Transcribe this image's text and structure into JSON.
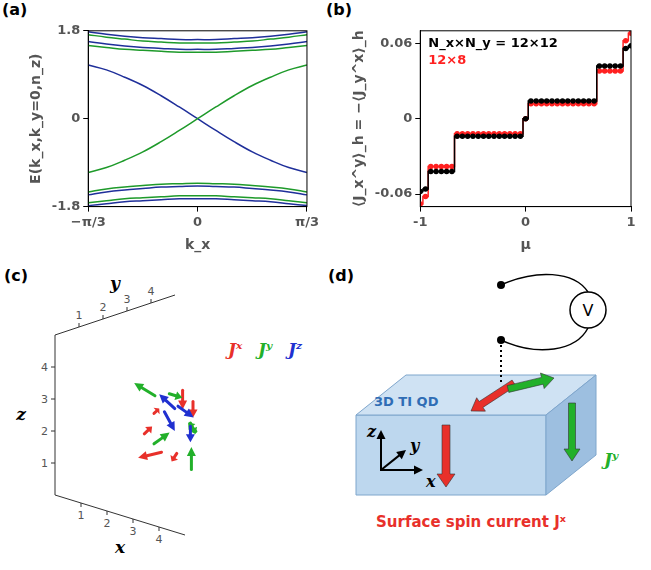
{
  "chart_data": [
    {
      "panel_label": "(a)",
      "type": "line",
      "grid": false,
      "xlabel": "k_x",
      "ylabel": "E(k_x,k_y=0,n_z)",
      "x": [
        -1.047,
        -0.873,
        -0.698,
        -0.524,
        -0.349,
        -0.175,
        0,
        0.175,
        0.349,
        0.524,
        0.698,
        0.873,
        1.047
      ],
      "xlim": [
        -1.047,
        1.047
      ],
      "xticks": [
        {
          "value": -1.047,
          "label": "−π/3"
        },
        0,
        {
          "value": 1.047,
          "label": "π/3"
        }
      ],
      "ylim": [
        -1.8,
        1.8
      ],
      "yticks": [
        -1.8,
        0,
        1.8
      ],
      "series": [
        {
          "color": "#1f2f9a",
          "values": [
            1.78,
            1.73,
            1.69,
            1.66,
            1.64,
            1.62,
            1.62,
            1.62,
            1.64,
            1.66,
            1.69,
            1.73,
            1.78
          ]
        },
        {
          "color": "#1e9a2a",
          "values": [
            1.72,
            1.67,
            1.63,
            1.59,
            1.57,
            1.55,
            1.55,
            1.55,
            1.57,
            1.59,
            1.63,
            1.67,
            1.72
          ]
        },
        {
          "color": "#1f2f9a",
          "values": [
            1.58,
            1.53,
            1.49,
            1.46,
            1.44,
            1.42,
            1.42,
            1.42,
            1.44,
            1.46,
            1.49,
            1.53,
            1.58
          ]
        },
        {
          "color": "#1e9a2a",
          "values": [
            1.5,
            1.46,
            1.42,
            1.4,
            1.38,
            1.36,
            1.36,
            1.36,
            1.38,
            1.4,
            1.42,
            1.46,
            1.5
          ]
        },
        {
          "color": "#1e9a2a",
          "values": [
            -1.1,
            -1.0,
            -0.85,
            -0.68,
            -0.47,
            -0.24,
            0,
            0.24,
            0.47,
            0.68,
            0.85,
            1.0,
            1.1
          ]
        },
        {
          "color": "#1f2f9a",
          "values": [
            1.1,
            1.0,
            0.85,
            0.68,
            0.47,
            0.24,
            0,
            -0.24,
            -0.47,
            -0.68,
            -0.85,
            -1.0,
            -1.1
          ]
        },
        {
          "color": "#1e9a2a",
          "values": [
            -1.5,
            -1.44,
            -1.4,
            -1.37,
            -1.34,
            -1.33,
            -1.32,
            -1.33,
            -1.34,
            -1.37,
            -1.4,
            -1.44,
            -1.5
          ]
        },
        {
          "color": "#1f2f9a",
          "values": [
            -1.56,
            -1.5,
            -1.46,
            -1.43,
            -1.4,
            -1.39,
            -1.38,
            -1.39,
            -1.4,
            -1.43,
            -1.46,
            -1.5,
            -1.56
          ]
        },
        {
          "color": "#1e9a2a",
          "values": [
            -1.72,
            -1.68,
            -1.64,
            -1.62,
            -1.6,
            -1.58,
            -1.58,
            -1.58,
            -1.6,
            -1.62,
            -1.64,
            -1.68,
            -1.72
          ]
        },
        {
          "color": "#1f2f9a",
          "values": [
            -1.78,
            -1.74,
            -1.7,
            -1.68,
            -1.66,
            -1.64,
            -1.64,
            -1.64,
            -1.66,
            -1.68,
            -1.7,
            -1.74,
            -1.78
          ]
        }
      ]
    },
    {
      "panel_label": "(b)",
      "type": "line",
      "grid": false,
      "legend": "upper left",
      "xlabel": "μ",
      "ylabel": "⟨J_x^y⟩_h = −⟨J_y^x⟩_h",
      "x": [
        -1,
        -0.95,
        -0.9,
        -0.85,
        -0.8,
        -0.75,
        -0.7,
        -0.65,
        -0.6,
        -0.55,
        -0.5,
        -0.45,
        -0.4,
        -0.35,
        -0.3,
        -0.25,
        -0.2,
        -0.15,
        -0.1,
        -0.05,
        0,
        0.05,
        0.1,
        0.15,
        0.2,
        0.25,
        0.3,
        0.35,
        0.4,
        0.45,
        0.5,
        0.55,
        0.6,
        0.65,
        0.7,
        0.75,
        0.8,
        0.85,
        0.9,
        0.95,
        1
      ],
      "xlim": [
        -1,
        1
      ],
      "xticks": [
        -1,
        0,
        1
      ],
      "ylim": [
        -0.07,
        0.07
      ],
      "yticks": [
        -0.06,
        0,
        0.06
      ],
      "series": [
        {
          "name": "N_x×N_y = 12×12",
          "color": "#000000",
          "marker": "circle",
          "line_style": "steps",
          "values": [
            -0.058,
            -0.056,
            -0.042,
            -0.042,
            -0.042,
            -0.042,
            -0.042,
            -0.014,
            -0.014,
            -0.014,
            -0.014,
            -0.014,
            -0.014,
            -0.014,
            -0.014,
            -0.014,
            -0.014,
            -0.014,
            -0.014,
            -0.014,
            0,
            0.014,
            0.014,
            0.014,
            0.014,
            0.014,
            0.014,
            0.014,
            0.014,
            0.014,
            0.014,
            0.014,
            0.014,
            0.014,
            0.042,
            0.042,
            0.042,
            0.042,
            0.042,
            0.056,
            0.058
          ]
        },
        {
          "name": "12×8",
          "color": "#ff2020",
          "marker": "circle",
          "line_style": "steps",
          "values": [
            -0.068,
            -0.062,
            -0.038,
            -0.038,
            -0.038,
            -0.038,
            -0.038,
            -0.012,
            -0.012,
            -0.012,
            -0.012,
            -0.012,
            -0.012,
            -0.012,
            -0.012,
            -0.012,
            -0.012,
            -0.012,
            -0.012,
            -0.012,
            0,
            0.012,
            0.012,
            0.012,
            0.012,
            0.012,
            0.012,
            0.012,
            0.012,
            0.012,
            0.012,
            0.012,
            0.012,
            0.012,
            0.038,
            0.038,
            0.038,
            0.038,
            0.038,
            0.062,
            0.068
          ]
        }
      ]
    }
  ],
  "panels": {
    "c": {
      "panel_label": "(c)",
      "xlabel": "x",
      "ylabel": "y",
      "zlabel": "z",
      "xlim": [
        0,
        5
      ],
      "ylim": [
        0,
        5
      ],
      "zlim": [
        0,
        5
      ],
      "xticks": [
        1,
        2,
        3,
        4
      ],
      "yticks": [
        1,
        2,
        3,
        4
      ],
      "zticks": [
        1,
        2,
        3,
        4
      ],
      "components": [
        {
          "name": "Jˣ",
          "color": "#e8302a"
        },
        {
          "name": "Jʸ",
          "color": "#22b02a"
        },
        {
          "name": "Jᶻ",
          "color": "#2030d0"
        }
      ],
      "vectors": [
        {
          "component": "Jˣ",
          "at": [
            1.8,
            2.0,
            1.2
          ],
          "dir": [
            -0.9,
            0,
            -0.4
          ]
        },
        {
          "component": "Jˣ",
          "at": [
            2.6,
            2.5,
            3.0
          ],
          "dir": [
            0,
            0,
            -0.6
          ]
        },
        {
          "component": "Jˣ",
          "at": [
            3.0,
            2.5,
            2.8
          ],
          "dir": [
            0,
            0,
            -0.5
          ]
        },
        {
          "component": "Jˣ",
          "at": [
            2.2,
            1.5,
            2.2
          ],
          "dir": [
            0.3,
            0,
            0.3
          ]
        },
        {
          "component": "Jˣ",
          "at": [
            3.2,
            1.5,
            1.6
          ],
          "dir": [
            -0.2,
            0,
            -0.3
          ]
        },
        {
          "component": "Jˣ",
          "at": [
            1.6,
            2.5,
            2.4
          ],
          "dir": [
            0.2,
            0,
            0.2
          ]
        },
        {
          "component": "Jʸ",
          "at": [
            1.6,
            2.0,
            3.2
          ],
          "dir": [
            -0.8,
            0,
            0.2
          ]
        },
        {
          "component": "Jʸ",
          "at": [
            2.8,
            2.0,
            3.3
          ],
          "dir": [
            0.5,
            0,
            0
          ]
        },
        {
          "component": "Jʸ",
          "at": [
            1.8,
            2.5,
            1.6
          ],
          "dir": [
            0.6,
            0,
            0.5
          ]
        },
        {
          "component": "Jʸ",
          "at": [
            3.4,
            2.0,
            1.5
          ],
          "dir": [
            0,
            0,
            0.7
          ]
        },
        {
          "component": "Jʸ",
          "at": [
            2.5,
            3.0,
            2.0
          ],
          "dir": [
            -0.3,
            0,
            0.2
          ]
        },
        {
          "component": "Jʸ",
          "at": [
            3.0,
            2.5,
            2.2
          ],
          "dir": [
            0.2,
            0,
            -0.3
          ]
        },
        {
          "component": "Jᶻ",
          "at": [
            2.0,
            2.5,
            2.8
          ],
          "dir": [
            -0.6,
            0,
            0.3
          ]
        },
        {
          "component": "Jᶻ",
          "at": [
            3.0,
            2.2,
            2.8
          ],
          "dir": [
            0.6,
            0,
            -0.2
          ]
        },
        {
          "component": "Jᶻ",
          "at": [
            2.1,
            2.5,
            2.2
          ],
          "dir": [
            0.4,
            0,
            -0.5
          ]
        },
        {
          "component": "Jᶻ",
          "at": [
            2.9,
            2.5,
            2.0
          ],
          "dir": [
            0,
            0,
            -0.5
          ]
        }
      ]
    },
    "d": {
      "panel_label": "(d)",
      "box_label": "3D TI QD",
      "axes": {
        "x": "x",
        "y": "y",
        "z": "z"
      },
      "meter_label": "V",
      "current_label": "Surface spin current Jˣ",
      "current_color": "#e8302a",
      "side_label": "Jʸ",
      "side_color": "#22b02a"
    }
  }
}
